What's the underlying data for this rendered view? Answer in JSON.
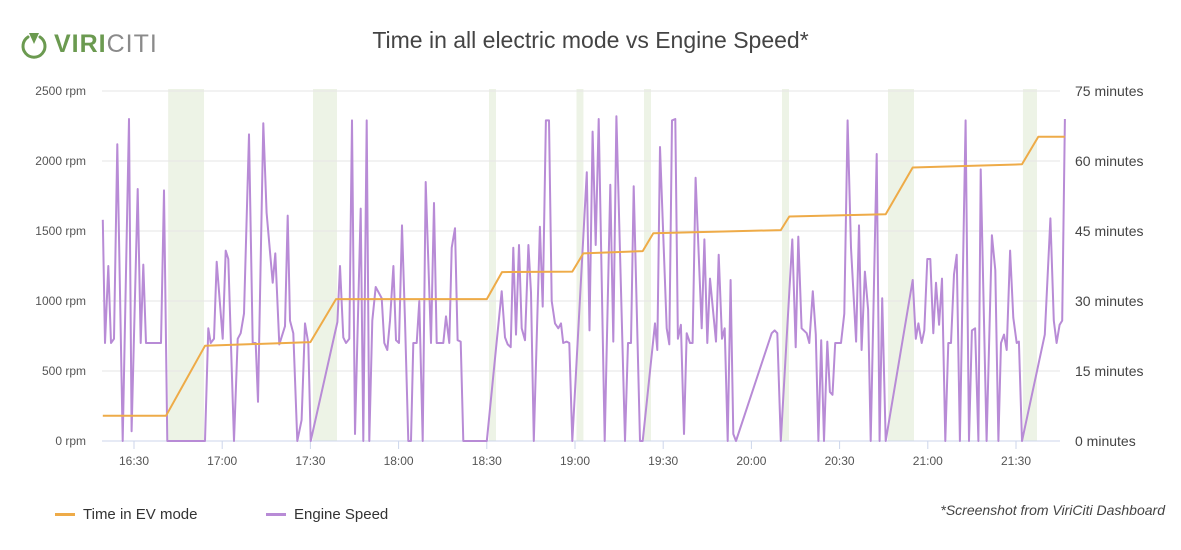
{
  "logo": {
    "part1": "VIRI",
    "part2": "CITI",
    "color": "#6b9a50"
  },
  "title": "Time in all electric mode vs Engine Speed*",
  "note": "*Screenshot from ViriCiti Dashboard",
  "legend": [
    {
      "label": "Time in EV mode",
      "color": "#eeab48"
    },
    {
      "label": "Engine Speed",
      "color": "#b88bd6"
    }
  ],
  "chart_data": {
    "type": "line",
    "title": "Time in all electric mode vs Engine Speed*",
    "grid": true,
    "legend_position": "bottom-left",
    "x_ticks": [
      "16:30",
      "17:00",
      "17:30",
      "18:00",
      "18:30",
      "19:00",
      "19:30",
      "20:00",
      "20:30",
      "21:00",
      "21:30"
    ],
    "y_left": {
      "ticks": [
        "0 rpm",
        "500 rpm",
        "1000 rpm",
        "1500 rpm",
        "2000 rpm",
        "2500 rpm"
      ],
      "range": [
        0,
        2500
      ]
    },
    "y_right": {
      "ticks": [
        "0 minutes",
        "15 minutes",
        "30 minutes",
        "45 minutes",
        "60 minutes",
        "75 minutes"
      ],
      "range": [
        0,
        75
      ]
    },
    "ev_periods_color": "#edf3e6",
    "ev_periods": [
      [
        "16:41:37",
        "16:53:49"
      ],
      [
        "17:30:53",
        "17:39:03"
      ],
      [
        "18:30:45",
        "18:33:08"
      ],
      [
        "19:00:30",
        "19:02:52"
      ],
      [
        "19:23:28",
        "19:25:51"
      ],
      [
        "20:10:24",
        "20:12:47"
      ],
      [
        "20:46:28",
        "20:55:18"
      ],
      [
        "21:32:22",
        "21:37:08"
      ]
    ],
    "series": [
      {
        "name": "Time in EV mode",
        "axis": "right",
        "color": "#eeab48",
        "points": [
          [
            "16:19:24",
            5.4
          ],
          [
            "16:40:54",
            5.4
          ],
          [
            "16:54:09",
            20.4
          ],
          [
            "17:30:00",
            21.2
          ],
          [
            "17:38:43",
            30.4
          ],
          [
            "18:30:00",
            30.4
          ],
          [
            "18:35:10",
            36.2
          ],
          [
            "18:59:05",
            36.3
          ],
          [
            "19:02:50",
            40.2
          ],
          [
            "19:23:02",
            40.7
          ],
          [
            "19:26:38",
            44.5
          ],
          [
            "20:10:00",
            45.2
          ],
          [
            "20:12:54",
            48.1
          ],
          [
            "20:45:41",
            48.6
          ],
          [
            "20:54:51",
            58.6
          ],
          [
            "21:32:02",
            59.3
          ],
          [
            "21:37:36",
            65.2
          ],
          [
            "21:46:37",
            65.2
          ]
        ]
      },
      {
        "name": "Engine Speed",
        "axis": "left",
        "color": "#b88bd6",
        "points": [
          [
            "16:19:24",
            1580
          ],
          [
            "16:20:08",
            700
          ],
          [
            "16:21:15",
            1250
          ],
          [
            "16:22:11",
            700
          ],
          [
            "16:23:12",
            730
          ],
          [
            "16:24:20",
            2120
          ],
          [
            "16:26:09",
            0
          ],
          [
            "16:28:18",
            2300
          ],
          [
            "16:29:12",
            70
          ],
          [
            "16:31:15",
            1800
          ],
          [
            "16:32:16",
            700
          ],
          [
            "16:33:10",
            1260
          ],
          [
            "16:34:05",
            700
          ],
          [
            "16:39:11",
            700
          ],
          [
            "16:40:12",
            1790
          ],
          [
            "16:41:20",
            0
          ],
          [
            "16:54:09",
            0
          ],
          [
            "16:55:16",
            805
          ],
          [
            "16:56:05",
            700
          ],
          [
            "16:57:13",
            730
          ],
          [
            "16:58:08",
            1280
          ],
          [
            "17:00:10",
            730
          ],
          [
            "17:01:11",
            1360
          ],
          [
            "17:02:05",
            1300
          ],
          [
            "17:04:00",
            0
          ],
          [
            "17:05:16",
            730
          ],
          [
            "17:06:17",
            770
          ],
          [
            "17:07:25",
            910
          ],
          [
            "17:09:07",
            2190
          ],
          [
            "17:10:22",
            700
          ],
          [
            "17:11:23",
            700
          ],
          [
            "17:12:11",
            280
          ],
          [
            "17:13:59",
            2270
          ],
          [
            "17:15:07",
            1630
          ],
          [
            "17:17:10",
            1130
          ],
          [
            "17:18:04",
            1340
          ],
          [
            "17:19:26",
            690
          ],
          [
            "17:21:22",
            820
          ],
          [
            "17:22:16",
            1610
          ],
          [
            "17:23:04",
            860
          ],
          [
            "17:24:12",
            770
          ],
          [
            "17:25:33",
            0
          ],
          [
            "17:27:00",
            150
          ],
          [
            "17:28:10",
            840
          ],
          [
            "17:29:17",
            700
          ],
          [
            "17:30:06",
            0
          ],
          [
            "17:39:10",
            850
          ],
          [
            "17:40:04",
            1250
          ],
          [
            "17:41:12",
            740
          ],
          [
            "17:42:07",
            700
          ],
          [
            "17:43:14",
            730
          ],
          [
            "17:44:08",
            2290
          ],
          [
            "17:45:10",
            50
          ],
          [
            "17:47:07",
            1660
          ],
          [
            "17:48:00",
            0
          ],
          [
            "17:49:09",
            2290
          ],
          [
            "17:50:02",
            0
          ],
          [
            "17:51:03",
            860
          ],
          [
            "17:52:13",
            1100
          ],
          [
            "17:54:15",
            1020
          ],
          [
            "17:55:08",
            700
          ],
          [
            "17:56:09",
            650
          ],
          [
            "17:57:05",
            860
          ],
          [
            "17:58:13",
            1250
          ],
          [
            "17:59:07",
            720
          ],
          [
            "18:00:08",
            700
          ],
          [
            "18:01:10",
            1540
          ],
          [
            "18:02:11",
            860
          ],
          [
            "18:03:18",
            0
          ],
          [
            "18:04:13",
            0
          ],
          [
            "18:05:00",
            700
          ],
          [
            "18:06:09",
            700
          ],
          [
            "18:07:03",
            1000
          ],
          [
            "18:08:12",
            0
          ],
          [
            "18:09:13",
            1850
          ],
          [
            "18:11:01",
            700
          ],
          [
            "18:12:03",
            1700
          ],
          [
            "18:12:57",
            700
          ],
          [
            "18:15:13",
            700
          ],
          [
            "18:16:07",
            890
          ],
          [
            "18:17:15",
            700
          ],
          [
            "18:18:03",
            1380
          ],
          [
            "18:19:11",
            1520
          ],
          [
            "18:20:05",
            720
          ],
          [
            "18:21:07",
            710
          ],
          [
            "18:22:00",
            0
          ],
          [
            "18:30:00",
            0
          ],
          [
            "18:35:04",
            1070
          ],
          [
            "18:36:11",
            740
          ],
          [
            "18:37:06",
            690
          ],
          [
            "18:38:08",
            670
          ],
          [
            "18:39:01",
            1380
          ],
          [
            "18:39:56",
            760
          ],
          [
            "18:40:57",
            1400
          ],
          [
            "18:41:52",
            805
          ],
          [
            "18:43:00",
            720
          ],
          [
            "18:44:08",
            1400
          ],
          [
            "18:45:02",
            1060
          ],
          [
            "18:46:00",
            0
          ],
          [
            "18:48:04",
            1530
          ],
          [
            "18:49:00",
            960
          ],
          [
            "18:50:07",
            2290
          ],
          [
            "18:51:09",
            2290
          ],
          [
            "18:52:04",
            1000
          ],
          [
            "18:53:12",
            840
          ],
          [
            "18:54:20",
            805
          ],
          [
            "18:55:14",
            840
          ],
          [
            "18:56:00",
            700
          ],
          [
            "18:57:10",
            710
          ],
          [
            "18:58:04",
            700
          ],
          [
            "18:59:05",
            0
          ],
          [
            "19:04:00",
            1920
          ],
          [
            "19:04:55",
            790
          ],
          [
            "19:06:00",
            2210
          ],
          [
            "19:07:02",
            1400
          ],
          [
            "19:08:03",
            2300
          ],
          [
            "19:10:06",
            0
          ],
          [
            "19:12:01",
            1830
          ],
          [
            "19:13:02",
            710
          ],
          [
            "19:14:04",
            2320
          ],
          [
            "19:17:00",
            0
          ],
          [
            "19:18:01",
            700
          ],
          [
            "19:19:02",
            700
          ],
          [
            "19:19:57",
            1820
          ],
          [
            "19:22:07",
            0
          ],
          [
            "19:23:02",
            0
          ],
          [
            "19:27:12",
            840
          ],
          [
            "19:28:00",
            650
          ],
          [
            "19:28:55",
            2100
          ],
          [
            "19:31:11",
            805
          ],
          [
            "19:32:05",
            690
          ],
          [
            "19:33:00",
            2290
          ],
          [
            "19:34:07",
            2300
          ],
          [
            "19:35:01",
            730
          ],
          [
            "19:36:02",
            830
          ],
          [
            "19:37:04",
            50
          ],
          [
            "19:37:59",
            770
          ],
          [
            "19:39:06",
            700
          ],
          [
            "19:40:00",
            700
          ],
          [
            "19:41:02",
            1880
          ],
          [
            "19:43:06",
            805
          ],
          [
            "19:44:00",
            1440
          ],
          [
            "19:45:01",
            700
          ],
          [
            "19:45:55",
            1160
          ],
          [
            "19:47:58",
            710
          ],
          [
            "19:48:53",
            1330
          ],
          [
            "19:50:00",
            730
          ],
          [
            "19:50:55",
            805
          ],
          [
            "19:51:56",
            0
          ],
          [
            "19:52:56",
            1150
          ],
          [
            "19:53:51",
            50
          ],
          [
            "19:54:46",
            0
          ],
          [
            "20:06:55",
            770
          ],
          [
            "20:07:56",
            790
          ],
          [
            "20:08:49",
            770
          ],
          [
            "20:10:00",
            0
          ],
          [
            "20:13:55",
            1440
          ],
          [
            "20:15:05",
            670
          ],
          [
            "20:15:58",
            1460
          ],
          [
            "20:17:05",
            805
          ],
          [
            "20:18:49",
            770
          ],
          [
            "20:19:42",
            700
          ],
          [
            "20:20:53",
            1070
          ],
          [
            "20:21:55",
            760
          ],
          [
            "20:22:48",
            0
          ],
          [
            "20:23:44",
            720
          ],
          [
            "20:24:42",
            0
          ],
          [
            "20:25:50",
            710
          ],
          [
            "20:26:43",
            350
          ],
          [
            "20:27:35",
            330
          ],
          [
            "20:28:30",
            700
          ],
          [
            "20:30:29",
            700
          ],
          [
            "20:31:36",
            910
          ],
          [
            "20:32:43",
            2290
          ],
          [
            "20:33:53",
            1380
          ],
          [
            "20:35:36",
            710
          ],
          [
            "20:36:36",
            1540
          ],
          [
            "20:37:30",
            650
          ],
          [
            "20:38:36",
            1210
          ],
          [
            "20:39:41",
            940
          ],
          [
            "20:40:35",
            0
          ],
          [
            "20:42:37",
            2050
          ],
          [
            "20:43:37",
            0
          ],
          [
            "20:44:30",
            1020
          ],
          [
            "20:45:41",
            0
          ],
          [
            "20:54:51",
            1150
          ],
          [
            "20:55:55",
            730
          ],
          [
            "20:56:48",
            840
          ],
          [
            "20:57:55",
            700
          ],
          [
            "20:58:48",
            790
          ],
          [
            "20:59:50",
            1300
          ],
          [
            "21:00:51",
            1300
          ],
          [
            "21:01:53",
            770
          ],
          [
            "21:02:48",
            1130
          ],
          [
            "21:03:50",
            830
          ],
          [
            "21:04:50",
            1160
          ],
          [
            "21:05:58",
            0
          ],
          [
            "21:06:59",
            700
          ],
          [
            "21:07:54",
            700
          ],
          [
            "21:08:55",
            1190
          ],
          [
            "21:09:49",
            1330
          ],
          [
            "21:10:55",
            0
          ],
          [
            "21:12:51",
            2290
          ],
          [
            "21:14:00",
            0
          ],
          [
            "21:15:00",
            790
          ],
          [
            "21:16:05",
            805
          ],
          [
            "21:17:13",
            0
          ],
          [
            "21:18:00",
            1940
          ],
          [
            "21:20:00",
            0
          ],
          [
            "21:21:49",
            1470
          ],
          [
            "21:22:58",
            1220
          ],
          [
            "21:24:00",
            0
          ],
          [
            "21:24:54",
            700
          ],
          [
            "21:25:55",
            760
          ],
          [
            "21:26:50",
            650
          ],
          [
            "21:28:00",
            1360
          ],
          [
            "21:29:05",
            880
          ],
          [
            "21:30:14",
            700
          ],
          [
            "21:31:00",
            710
          ],
          [
            "21:32:02",
            0
          ],
          [
            "21:39:48",
            760
          ],
          [
            "21:41:43",
            1590
          ],
          [
            "21:42:51",
            860
          ],
          [
            "21:43:48",
            700
          ],
          [
            "21:44:50",
            830
          ],
          [
            "21:45:43",
            860
          ],
          [
            "21:46:37",
            2300
          ]
        ]
      }
    ]
  }
}
